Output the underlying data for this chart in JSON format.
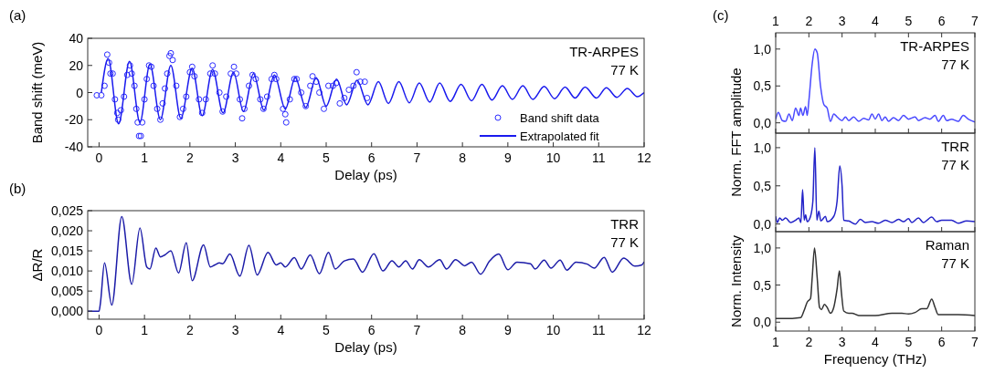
{
  "chart_data": [
    {
      "type": "line",
      "title": "(a)",
      "xlabel": "Delay (ps)",
      "ylabel": "Band shift (meV)",
      "xlim": [
        -0.25,
        12
      ],
      "xticks": [
        0,
        1,
        2,
        3,
        4,
        5,
        6,
        7,
        8,
        9,
        10,
        11,
        12
      ],
      "ylim": [
        -40,
        40
      ],
      "yticks": [
        -40,
        -20,
        0,
        20,
        40
      ],
      "legend": "bottom right",
      "annotations": [
        "TR-ARPES",
        "77 K"
      ],
      "series": [
        {
          "name": "Band shift data",
          "type": "scatter",
          "marker": "circle",
          "color": "#2b2bff",
          "x": [
            -0.05,
            0.05,
            0.12,
            0.18,
            0.22,
            0.25,
            0.3,
            0.35,
            0.4,
            0.42,
            0.48,
            0.55,
            0.62,
            0.68,
            0.72,
            0.78,
            0.82,
            0.85,
            0.88,
            0.92,
            0.95,
            1.0,
            1.05,
            1.1,
            1.15,
            1.2,
            1.28,
            1.35,
            1.4,
            1.45,
            1.5,
            1.55,
            1.58,
            1.62,
            1.7,
            1.78,
            1.85,
            1.92,
            2.0,
            2.05,
            2.1,
            2.2,
            2.27,
            2.35,
            2.45,
            2.5,
            2.55,
            2.65,
            2.72,
            2.8,
            2.9,
            2.97,
            3.02,
            3.1,
            3.15,
            3.2,
            3.3,
            3.38,
            3.45,
            3.55,
            3.62,
            3.7,
            3.8,
            3.86,
            3.9,
            4.05,
            4.1,
            4.12,
            4.2,
            4.3,
            4.35,
            4.45,
            4.55,
            4.65,
            4.7,
            4.78,
            4.85,
            4.95,
            5.05,
            5.15,
            5.22,
            5.3,
            5.4,
            5.5,
            5.6,
            5.67,
            5.75,
            5.85,
            5.9
          ],
          "values": [
            -2,
            -2,
            5,
            28,
            22,
            14,
            14,
            -5,
            -15,
            -20,
            -13,
            -3,
            13,
            20,
            14,
            5,
            -12,
            -22,
            -32,
            -32,
            -22,
            -5,
            10,
            20,
            19,
            5,
            -12,
            -20,
            -8,
            3,
            14,
            27,
            29,
            24,
            5,
            -18,
            -12,
            -3,
            15,
            19,
            12,
            -5,
            -15,
            -5,
            14,
            20,
            14,
            0,
            -14,
            -3,
            14,
            19,
            14,
            -5,
            -19,
            -12,
            5,
            13,
            10,
            -5,
            -12,
            -3,
            10,
            13,
            10,
            -12,
            -16,
            -22,
            -5,
            10,
            10,
            0,
            -10,
            5,
            12,
            8,
            0,
            -12,
            5,
            5,
            7,
            -8,
            -4,
            2,
            5,
            15,
            8,
            8,
            -4
          ]
        },
        {
          "name": "Extrapolated fit",
          "color": "#1a1aee",
          "x": [
            0.05,
            0.2,
            0.43,
            0.67,
            0.9,
            1.12,
            1.35,
            1.58,
            1.8,
            2.05,
            2.27,
            2.5,
            2.73,
            2.96,
            3.18,
            3.4,
            3.63,
            3.86,
            4.1,
            4.32,
            4.55,
            4.78,
            5.0,
            5.23,
            5.45,
            5.68,
            5.92,
            6.15,
            6.37,
            6.6,
            6.83,
            7.05,
            7.28,
            7.5,
            7.73,
            7.97,
            8.2,
            8.43,
            8.65,
            8.88,
            9.1,
            9.33,
            9.55,
            9.8,
            10.03,
            10.26,
            10.48,
            10.7,
            10.95,
            11.17,
            11.4,
            11.63,
            11.85,
            12
          ],
          "values": [
            0,
            25,
            -23,
            23,
            -22,
            21,
            -20,
            20,
            -19,
            18,
            -17,
            17,
            -15,
            15,
            -14,
            14,
            -13,
            13,
            -12,
            11,
            -11,
            11,
            -10,
            10,
            -9,
            9,
            -9,
            8,
            -8,
            8,
            -7.5,
            7,
            -7,
            7,
            -6.5,
            6,
            -6,
            6,
            -5.5,
            5,
            -5,
            5,
            -5,
            4.5,
            -4.5,
            4,
            -4,
            4,
            -4,
            3.5,
            -3.5,
            3,
            -3,
            0
          ]
        }
      ]
    },
    {
      "type": "line",
      "title": "(b)",
      "xlabel": "Delay (ps)",
      "ylabel": "ΔR/R",
      "xlim": [
        -0.25,
        12
      ],
      "xticks": [
        0,
        1,
        2,
        3,
        4,
        5,
        6,
        7,
        8,
        9,
        10,
        11,
        12
      ],
      "ylim": [
        -0.002,
        0.025
      ],
      "yticks": [
        {
          "value": 0,
          "label": "0,000"
        },
        {
          "value": 0.005,
          "label": "0,005"
        },
        {
          "value": 0.01,
          "label": "0,010"
        },
        {
          "value": 0.015,
          "label": "0,015"
        },
        {
          "value": 0.02,
          "label": "0,020"
        },
        {
          "value": 0.025,
          "label": "0,025"
        }
      ],
      "annotations": [
        "TRR",
        "77 K"
      ],
      "series": [
        {
          "color": "#1c1ca8",
          "x": [
            -0.25,
            0,
            0.03,
            0.12,
            0.28,
            0.5,
            0.72,
            0.9,
            1.05,
            1.12,
            1.25,
            1.35,
            1.45,
            1.58,
            1.75,
            1.92,
            2.05,
            2.3,
            2.45,
            2.55,
            2.65,
            2.72,
            2.88,
            3.1,
            3.3,
            3.48,
            3.72,
            3.9,
            4.0,
            4.1,
            4.3,
            4.45,
            4.65,
            4.85,
            5.05,
            5.2,
            5.4,
            5.6,
            5.8,
            6.05,
            6.25,
            6.45,
            6.6,
            6.75,
            6.9,
            7.05,
            7.25,
            7.5,
            7.65,
            7.85,
            8.05,
            8.2,
            8.4,
            8.6,
            8.8,
            9.0,
            9.2,
            9.5,
            9.6,
            9.8,
            9.95,
            10.15,
            10.3,
            10.5,
            10.75,
            10.9,
            11.12,
            11.3,
            11.55,
            11.8,
            11.95,
            12
          ],
          "values": [
            0,
            0,
            0.002,
            0.012,
            0.0015,
            0.0235,
            0.0067,
            0.0207,
            0.011,
            0.0105,
            0.0157,
            0.0135,
            0.014,
            0.015,
            0.0095,
            0.017,
            0.0076,
            0.0165,
            0.011,
            0.0115,
            0.012,
            0.0118,
            0.0142,
            0.0087,
            0.0164,
            0.009,
            0.0146,
            0.0115,
            0.012,
            0.011,
            0.0133,
            0.0105,
            0.014,
            0.0093,
            0.0146,
            0.0105,
            0.0125,
            0.013,
            0.0097,
            0.0143,
            0.01,
            0.0125,
            0.011,
            0.0125,
            0.0105,
            0.0128,
            0.011,
            0.0128,
            0.0105,
            0.0128,
            0.0113,
            0.0122,
            0.0092,
            0.0125,
            0.0142,
            0.0103,
            0.0122,
            0.0118,
            0.0105,
            0.0127,
            0.0107,
            0.0127,
            0.0102,
            0.0122,
            0.0117,
            0.0107,
            0.0134,
            0.0097,
            0.0132,
            0.0112,
            0.0115,
            0.0123
          ]
        }
      ]
    },
    {
      "type": "line",
      "title": "(c)",
      "ylabel": "Norm. FFT amplitude",
      "xlim": [
        1,
        7
      ],
      "xticks": [
        1,
        2,
        3,
        4,
        5,
        6,
        7
      ],
      "x2lim": [
        1,
        7
      ],
      "x2ticks": [
        1,
        2,
        3,
        4,
        5,
        6,
        7
      ],
      "tick_labels": "y",
      "ylim": [
        -0.14,
        1.22
      ],
      "yticks": [
        {
          "value": 0,
          "label": "0,0"
        },
        {
          "value": 0.5,
          "label": "0,5"
        },
        {
          "value": 1,
          "label": "1,0"
        }
      ],
      "annotations": [
        "TR-ARPES",
        "77 K"
      ],
      "series": [
        {
          "color": "#4a4aff",
          "x": [
            1,
            1.08,
            1.2,
            1.3,
            1.4,
            1.5,
            1.6,
            1.7,
            1.75,
            1.82,
            1.9,
            1.95,
            2.0,
            2.1,
            2.18,
            2.25,
            2.35,
            2.45,
            2.55,
            2.65,
            2.75,
            2.85,
            3.0,
            3.1,
            3.2,
            3.35,
            3.5,
            3.65,
            3.8,
            3.9,
            4.0,
            4.1,
            4.2,
            4.3,
            4.4,
            4.55,
            4.7,
            4.85,
            5.0,
            5.2,
            5.3,
            5.5,
            5.65,
            5.8,
            5.9,
            6.05,
            6.15,
            6.3,
            6.5,
            6.65,
            6.8,
            7.0
          ],
          "values": [
            0.05,
            0.14,
            0.03,
            0.02,
            0.12,
            0.03,
            0.2,
            0.1,
            0.2,
            0.1,
            0.22,
            0.1,
            0.3,
            0.8,
            1.0,
            0.95,
            0.5,
            0.25,
            0.2,
            0.02,
            0.12,
            0.08,
            0.03,
            0.08,
            0.03,
            0.08,
            0.02,
            0.06,
            0.04,
            0.12,
            0.05,
            0.12,
            0.03,
            0.08,
            0.02,
            0.07,
            0.03,
            0.1,
            0.05,
            0.08,
            0.03,
            0.07,
            0.05,
            0.1,
            0.02,
            0.1,
            0.03,
            0.05,
            0.02,
            0.1,
            0.05,
            0.01
          ]
        }
      ]
    },
    {
      "type": "line",
      "xlim": [
        1,
        7
      ],
      "xticks": [
        1,
        2,
        3,
        4,
        5,
        6,
        7
      ],
      "tick_labels": "y",
      "ylim": [
        -0.1,
        1.19
      ],
      "yticks": [
        {
          "value": 0,
          "label": "0,0"
        },
        {
          "value": 0.5,
          "label": "0,5"
        },
        {
          "value": 1,
          "label": "1,0"
        }
      ],
      "annotations": [
        "TRR",
        "77 K"
      ],
      "series": [
        {
          "color": "#2323c8",
          "x": [
            1,
            1.05,
            1.12,
            1.2,
            1.3,
            1.45,
            1.6,
            1.7,
            1.76,
            1.81,
            1.86,
            1.9,
            1.95,
            2.05,
            2.12,
            2.18,
            2.24,
            2.3,
            2.36,
            2.5,
            2.55,
            2.75,
            2.85,
            2.93,
            3.0,
            3.05,
            3.2,
            3.4,
            3.55,
            3.7,
            3.9,
            4.1,
            4.3,
            4.5,
            4.7,
            4.85,
            5.0,
            5.1,
            5.3,
            5.45,
            5.7,
            5.85,
            6.0,
            6.3,
            6.5,
            6.75,
            7.0
          ],
          "values": [
            0.1,
            0.02,
            0.08,
            0.05,
            0.08,
            0.02,
            0.05,
            0.08,
            0.02,
            0.45,
            0.05,
            0.12,
            0.03,
            0.1,
            0.3,
            1.0,
            0.05,
            0.17,
            0.04,
            0.1,
            0.03,
            0.1,
            0.3,
            0.76,
            0.5,
            0.05,
            0.04,
            0.0,
            0.06,
            0.02,
            0.03,
            0.01,
            0.05,
            0.02,
            0.06,
            0.03,
            0.07,
            0.02,
            0.08,
            0.02,
            0.09,
            0.03,
            0.05,
            0.05,
            0.01,
            0.04,
            0.03
          ]
        }
      ]
    },
    {
      "type": "line",
      "xlabel": "Frequency (THz)",
      "ylabel": "Norm. Intensity",
      "xlim": [
        1,
        7
      ],
      "xticks": [
        1,
        2,
        3,
        4,
        5,
        6,
        7
      ],
      "ylim": [
        -0.12,
        1.22
      ],
      "yticks": [
        {
          "value": 0,
          "label": "0,0"
        },
        {
          "value": 0.5,
          "label": "0,5"
        },
        {
          "value": 1,
          "label": "1,0"
        }
      ],
      "annotations": [
        "Raman",
        "77 K"
      ],
      "series": [
        {
          "color": "#333333",
          "x": [
            1,
            1.5,
            1.75,
            1.85,
            1.95,
            2.05,
            2.1,
            2.17,
            2.25,
            2.32,
            2.38,
            2.47,
            2.55,
            2.65,
            2.75,
            2.85,
            2.92,
            2.98,
            3.05,
            3.2,
            3.3,
            3.5,
            4.0,
            4.5,
            4.8,
            5.0,
            5.2,
            5.4,
            5.55,
            5.7,
            5.8,
            5.9,
            6.2,
            6.5,
            7
          ],
          "values": [
            0.05,
            0.05,
            0.06,
            0.15,
            0.27,
            0.32,
            0.6,
            1.0,
            0.6,
            0.2,
            0.17,
            0.24,
            0.2,
            0.12,
            0.2,
            0.45,
            0.69,
            0.4,
            0.15,
            0.12,
            0.12,
            0.09,
            0.09,
            0.12,
            0.12,
            0.11,
            0.13,
            0.18,
            0.18,
            0.31,
            0.2,
            0.1,
            0.1,
            0.1,
            0.09
          ]
        }
      ]
    }
  ]
}
